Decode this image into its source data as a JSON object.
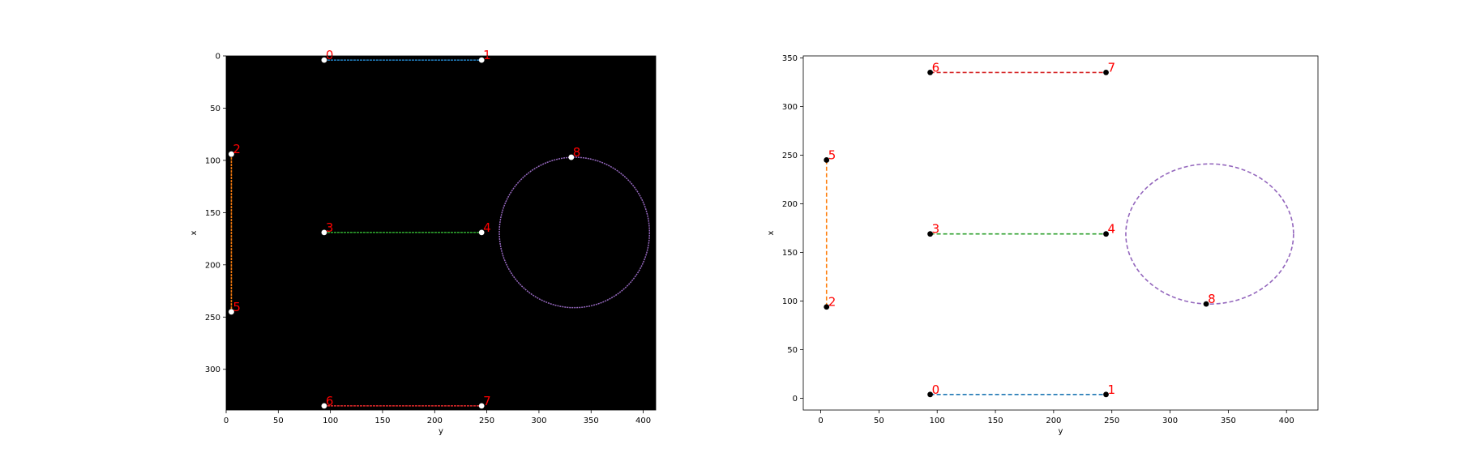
{
  "chart_data": [
    {
      "type": "scatter",
      "subtype": "image-overlay",
      "background": "black image",
      "xlabel": "y",
      "ylabel": "x",
      "xlim": [
        0,
        412
      ],
      "ylim": [
        339,
        0
      ],
      "y_inverted": true,
      "xticks": [
        0,
        50,
        100,
        150,
        200,
        250,
        300,
        350,
        400
      ],
      "yticks": [
        0,
        50,
        100,
        150,
        200,
        250,
        300
      ],
      "marker_color": "#ffffff",
      "points": [
        {
          "label": "0",
          "x": 94,
          "y": 4
        },
        {
          "label": "1",
          "x": 245,
          "y": 4
        },
        {
          "label": "2",
          "x": 5,
          "y": 94
        },
        {
          "label": "3",
          "x": 94,
          "y": 169
        },
        {
          "label": "4",
          "x": 245,
          "y": 169
        },
        {
          "label": "5",
          "x": 5,
          "y": 245
        },
        {
          "label": "6",
          "x": 94,
          "y": 335
        },
        {
          "label": "7",
          "x": 245,
          "y": 335
        },
        {
          "label": "8",
          "x": 331,
          "y": 97
        }
      ],
      "segments": [
        {
          "from": "0",
          "to": "1",
          "color": "#1f77b4"
        },
        {
          "from": "2",
          "to": "5",
          "color": "#ff7f0e"
        },
        {
          "from": "3",
          "to": "4",
          "color": "#2ca02c"
        },
        {
          "from": "6",
          "to": "7",
          "color": "#d62728"
        }
      ],
      "circle": {
        "cx": 334,
        "cy": 169,
        "r": 72,
        "color": "#9467bd"
      }
    },
    {
      "type": "scatter",
      "subtype": "line-drawing",
      "xlabel": "y",
      "ylabel": "x",
      "xlim": [
        -15,
        427
      ],
      "ylim": [
        -12,
        352
      ],
      "xticks": [
        0,
        50,
        100,
        150,
        200,
        250,
        300,
        350,
        400
      ],
      "yticks": [
        0,
        50,
        100,
        150,
        200,
        250,
        300,
        350
      ],
      "marker_color": "#000000",
      "points": [
        {
          "label": "0",
          "x": 94,
          "y": 4
        },
        {
          "label": "1",
          "x": 245,
          "y": 4
        },
        {
          "label": "2",
          "x": 5,
          "y": 94
        },
        {
          "label": "3",
          "x": 94,
          "y": 169
        },
        {
          "label": "4",
          "x": 245,
          "y": 169
        },
        {
          "label": "5",
          "x": 5,
          "y": 245
        },
        {
          "label": "6",
          "x": 94,
          "y": 335
        },
        {
          "label": "7",
          "x": 245,
          "y": 335
        },
        {
          "label": "8",
          "x": 331,
          "y": 97
        }
      ],
      "segments": [
        {
          "from": "0",
          "to": "1",
          "color": "#1f77b4"
        },
        {
          "from": "2",
          "to": "5",
          "color": "#ff7f0e"
        },
        {
          "from": "3",
          "to": "4",
          "color": "#2ca02c"
        },
        {
          "from": "6",
          "to": "7",
          "color": "#d62728"
        }
      ],
      "circle": {
        "cx": 334,
        "cy": 169,
        "r": 72,
        "color": "#9467bd"
      }
    }
  ]
}
